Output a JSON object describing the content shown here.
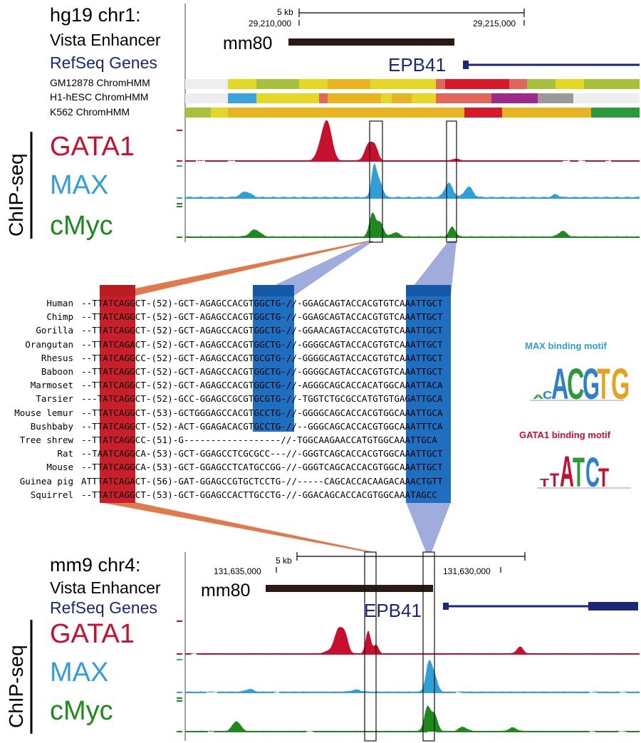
{
  "colors": {
    "gata1": "#c8102e",
    "max": "#2f9fd8",
    "cmyc": "#1e8a1e",
    "refseq": "#1a2878",
    "enhancer": "#2a1a14",
    "box_red": "#c81f28",
    "box_blue": "#1e6fc0",
    "wedge_orange": "#e07a4c",
    "wedge_blue": "#8f9fd6"
  },
  "top_panel": {
    "genome": "hg19 chr1:",
    "scale_label": "5 kb",
    "coord_left": "29,210,000",
    "coord_right": "29,215,000",
    "vista_label": "Vista Enhancer",
    "enhancer_name": "mm80",
    "refseq_label": "RefSeq Genes",
    "gene_name": "EPB41",
    "chromhmm_tracks": [
      {
        "label": "GM12878 ChromHMM"
      },
      {
        "label": "H1-hESC ChromHMM"
      },
      {
        "label": "K562 ChromHMM"
      }
    ],
    "chipseq_label": "ChIP-seq",
    "factors": [
      "GATA1",
      "MAX",
      "cMyc"
    ]
  },
  "alignment": {
    "species": [
      "Human",
      "Chimp",
      "Gorilla",
      "Orangutan",
      "Rhesus",
      "Baboon",
      "Marmoset",
      "Tarsier",
      "Mouse lemur",
      "Bushbaby",
      "Tree shrew",
      "Rat",
      "Mouse",
      "Guinea pig",
      "Squirrel"
    ],
    "sequences": [
      "--TTATCAGGCT-(52)-GCT-AGAGCCACGTGGCTG-//-GGAGCAGTACCACGTGTCAAATTGCT",
      "--TTATCAGGCT-(52)-GCT-AGAGCCACGTGGCTG-//-GGAGCAGTACCACGTGTCAAATTGCT",
      "--TTATCAGGCT-(52)-GCT-AGAGCCACGTGGCTG-//-GGAACAGTACCACGTGTCAAATTGCT",
      "--TTATCAGACT-(52)-GCT-AGAGCCACGTGGCTG-//-GGGGCAGTACCACGTGTCAAATTGCT",
      "--TTATCAGGCC-(52)-GCT-AGAGCCACGTGCGTG-//-GGGGCAGTACCACGTGTCAAATTGCT",
      "--TTATCAGGCT-(52)-GCT-AGAGCCACGTGGCTG-//-GGGGCAGTACCACGTGTCAAATTGCT",
      "--TTATCAGGCT-(52)-GCT-AGAGCCACGTGGCTG-//-AGGGCAGCACCACATGGCAAATTACA",
      "---TATCAGGCT-(52)-GCC-GGAGCCGCGTGCGTG-//-TGGTCTGCGCCATGTGTGAGATTGCA",
      "--TTATCAGGCT-(53)-GCTGGGAGCCACGTGCCTG-//-GGGGCAGCACCACGTGGCAAATTGCA",
      "--TTATCAGGCT-(52)-ACT-GGAGACACGTGCCTG-//--GGGCAGCACCACGTGGCAAATTTCA",
      "--TTATCAGGCC-(51)-G------------------//-TGGCAAGAACCATGTGGCAAATTGCA",
      "--TAATCAGGCA-(53)-GCT-GGAGCCTCGCGCC---//-GGGTCAGCACCACGTGGCAAATTGCT",
      "--TTATCAGGCA-(53)-GCT-GGAGCCTCATGCCGG-//-GGGTCAGCACCACGTGGCAAATTGCT",
      "ATTTATCAGACT-(56)-GAT-GGAGCCGTGCTCCTG-//-----CAGCACCACAAGACAAACTGTT",
      "--TTATCAGGCT-(53)-GCT-GGAGCCACTTGCCTG-//-GGACAGCACCACGTGGCAAATAGCC"
    ],
    "max_motif_title": "MAX binding motif",
    "gata1_motif_title": "GATA1 binding motif",
    "max_logo_letters": "ACACGTG",
    "gata1_logo_letters": "TTATCT"
  },
  "bottom_panel": {
    "genome": "mm9 chr4:",
    "scale_label": "5 kb",
    "coord_left": "131,635,000",
    "coord_right": "131,630,000",
    "vista_label": "Vista Enhancer",
    "enhancer_name": "mm80",
    "refseq_label": "RefSeq Genes",
    "gene_name": "EPB41",
    "chipseq_label": "ChIP-seq",
    "factors": [
      "GATA1",
      "MAX",
      "cMyc"
    ]
  }
}
